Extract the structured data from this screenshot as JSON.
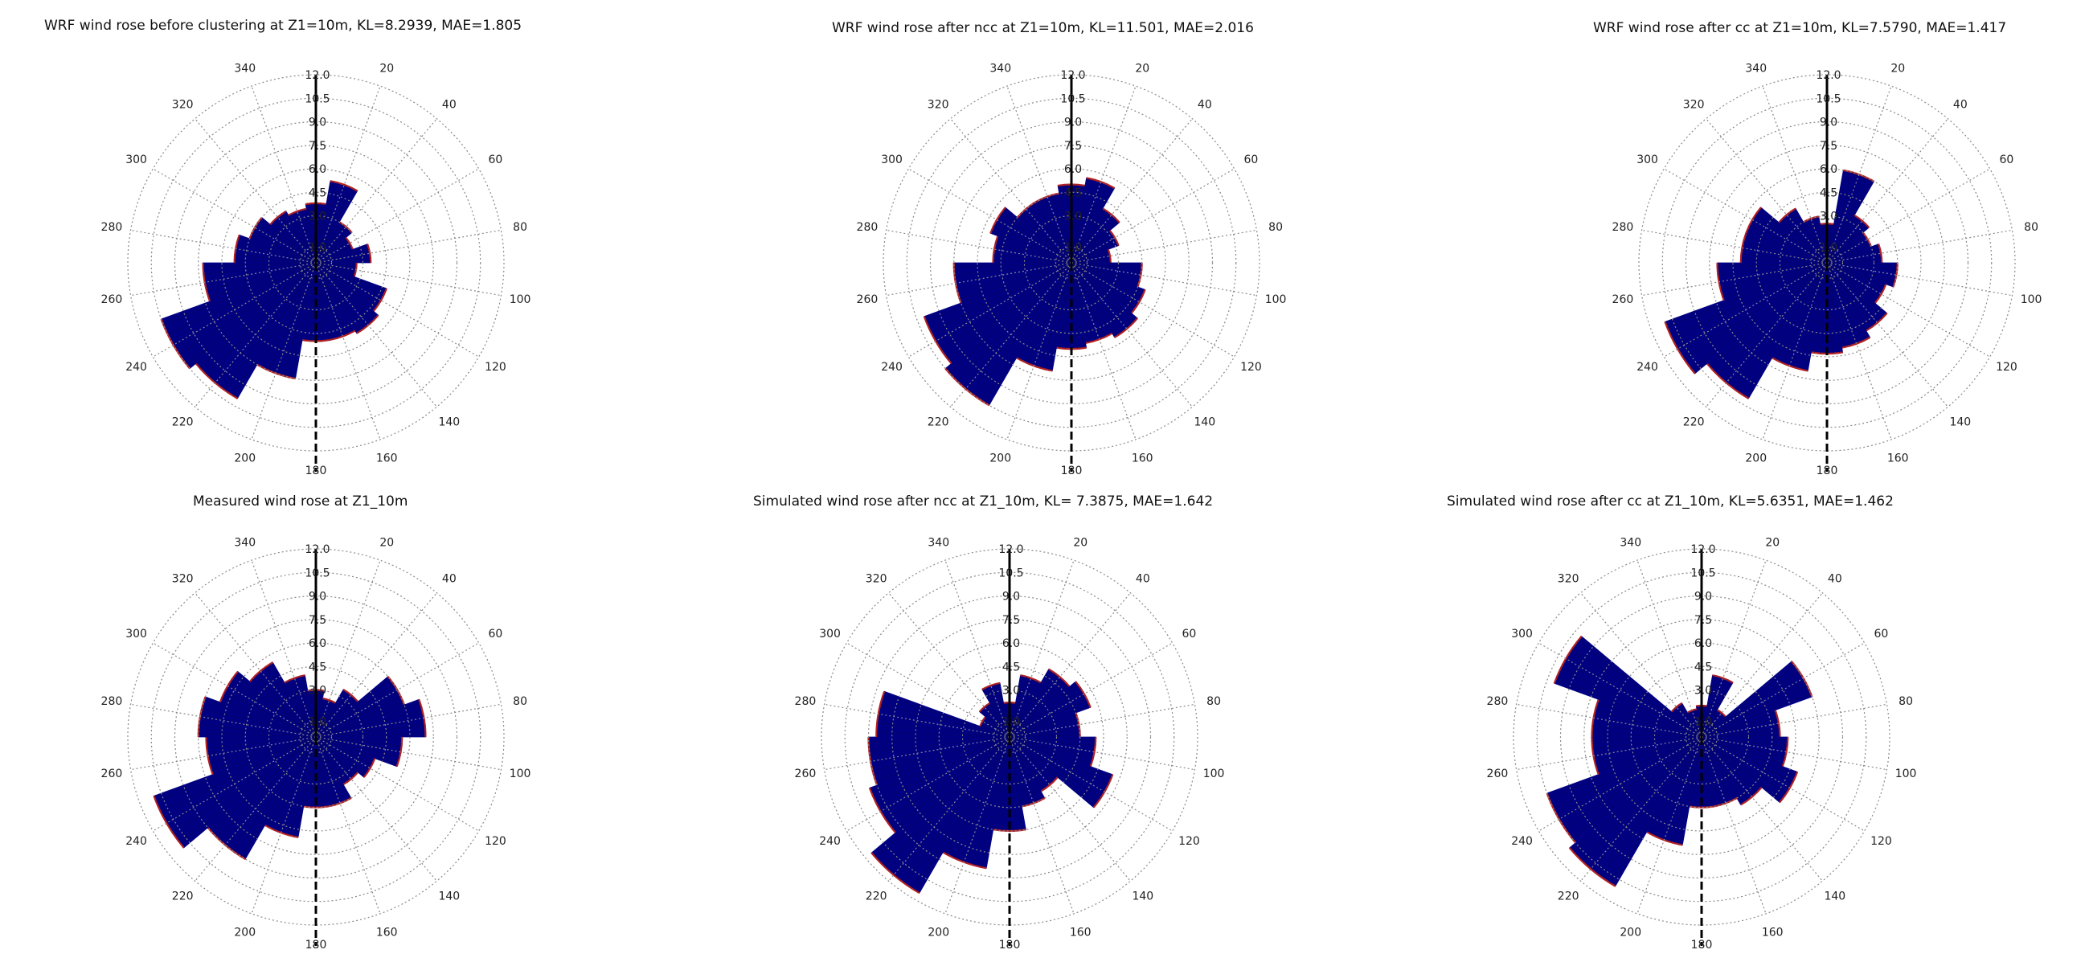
{
  "figure": {
    "panels": [
      {
        "title": "WRF wind rose before clustering at Z1=10m, KL=8.2939, MAE=1.805"
      },
      {
        "title": "WRF wind rose after ncc at Z1=10m, KL=11.501, MAE=2.016"
      },
      {
        "title": "WRF wind rose after cc at Z1=10m, KL=7.5790, MAE=1.417"
      },
      {
        "title": "Measured wind rose at Z1_10m"
      },
      {
        "title": "Simulated wind rose after ncc at Z1_10m, KL= 7.3875, MAE=1.642"
      },
      {
        "title": "Simulated wind rose after cc at Z1_10m, KL=5.6351, MAE=1.462"
      }
    ]
  },
  "colors": {
    "bar_fill": "#000080",
    "bar_edge": "#b22222",
    "grid": "#8a8a8a",
    "north_south_line": "#000000"
  },
  "chart_data": [
    {
      "type": "wind-rose",
      "title": "WRF wind rose before clustering at Z1=10m, KL=8.2939, MAE=1.805",
      "direction_ticks": [
        "20",
        "40",
        "60",
        "80",
        "100",
        "120",
        "140",
        "160",
        "180",
        "200",
        "220",
        "240",
        "260",
        "280",
        "300",
        "320",
        "340"
      ],
      "radial_ticks": [
        "1.0",
        "3.0",
        "4.5",
        "6.0",
        "7.5",
        "9.0",
        "10.5",
        "12.0"
      ],
      "rlim": [
        0,
        12
      ],
      "grid": true,
      "sector_width_deg": 20,
      "sectors_deg": [
        0,
        20,
        40,
        60,
        80,
        100,
        120,
        140,
        160,
        180,
        200,
        220,
        240,
        260,
        280,
        300,
        320,
        340
      ],
      "values": [
        3.8,
        5.3,
        3.0,
        2.5,
        3.5,
        2.6,
        4.8,
        5.2,
        5.0,
        5.0,
        7.5,
        10.0,
        10.5,
        7.2,
        5.2,
        4.5,
        3.8,
        3.5
      ]
    },
    {
      "type": "wind-rose",
      "title": "WRF wind rose after ncc at Z1=10m, KL=11.501, MAE=2.016",
      "direction_ticks": [
        "20",
        "40",
        "60",
        "80",
        "100",
        "120",
        "140",
        "160",
        "180",
        "200",
        "220",
        "240",
        "260",
        "280",
        "300",
        "320",
        "340"
      ],
      "radial_ticks": [
        "1.0",
        "3.0",
        "4.5",
        "6.0",
        "7.5",
        "9.0",
        "10.5",
        "12.0"
      ],
      "rlim": [
        0,
        12
      ],
      "grid": true,
      "sector_width_deg": 20,
      "sectors_deg": [
        0,
        20,
        40,
        60,
        80,
        100,
        120,
        140,
        160,
        180,
        200,
        220,
        240,
        260,
        280,
        300,
        320,
        340
      ],
      "values": [
        5.0,
        5.5,
        4.0,
        3.2,
        2.5,
        4.5,
        5.0,
        5.5,
        5.2,
        5.5,
        7.0,
        10.5,
        10.0,
        7.5,
        5.0,
        5.5,
        4.5,
        4.5
      ]
    },
    {
      "type": "wind-rose",
      "title": "WRF wind rose after cc at Z1=10m, KL=7.5790, MAE=1.417",
      "direction_ticks": [
        "20",
        "40",
        "60",
        "80",
        "100",
        "120",
        "140",
        "160",
        "180",
        "200",
        "220",
        "240",
        "260",
        "280",
        "300",
        "320",
        "340"
      ],
      "radial_ticks": [
        "1.0",
        "3.0",
        "4.5",
        "6.0",
        "7.5",
        "9.0",
        "10.5",
        "12.0"
      ],
      "rlim": [
        0,
        12
      ],
      "grid": true,
      "sector_width_deg": 20,
      "sectors_deg": [
        0,
        20,
        40,
        60,
        80,
        100,
        120,
        140,
        160,
        180,
        200,
        220,
        240,
        260,
        280,
        300,
        320,
        340
      ],
      "values": [
        2.5,
        6.0,
        3.5,
        3.0,
        3.5,
        4.5,
        4.0,
        5.0,
        5.5,
        5.8,
        7.0,
        10.0,
        11.0,
        7.0,
        5.5,
        5.5,
        4.0,
        3.0
      ]
    },
    {
      "type": "wind-rose",
      "title": "Measured wind rose at Z1_10m",
      "direction_ticks": [
        "20",
        "40",
        "60",
        "80",
        "100",
        "120",
        "140",
        "160",
        "180",
        "200",
        "220",
        "240",
        "260",
        "280",
        "300",
        "320",
        "340"
      ],
      "radial_ticks": [
        "1.0",
        "3.0",
        "4.5",
        "6.0",
        "7.5",
        "9.0",
        "10.5",
        "12.0"
      ],
      "rlim": [
        0,
        12
      ],
      "grid": true,
      "sector_width_deg": 20,
      "sectors_deg": [
        0,
        20,
        40,
        60,
        80,
        100,
        120,
        140,
        160,
        180,
        200,
        220,
        240,
        260,
        280,
        300,
        320,
        340
      ],
      "values": [
        3.0,
        2.5,
        3.5,
        6.0,
        7.0,
        5.5,
        4.0,
        3.5,
        4.5,
        4.5,
        6.5,
        9.0,
        11.0,
        7.0,
        7.5,
        6.5,
        5.5,
        4.0
      ]
    },
    {
      "type": "wind-rose",
      "title": "Simulated wind rose after ncc at Z1_10m, KL= 7.3875, MAE=1.642",
      "direction_ticks": [
        "20",
        "40",
        "60",
        "80",
        "100",
        "120",
        "140",
        "160",
        "180",
        "200",
        "220",
        "240",
        "260",
        "280",
        "300",
        "320",
        "340"
      ],
      "radial_ticks": [
        "1.0",
        "3.0",
        "4.5",
        "6.0",
        "7.5",
        "9.0",
        "10.5",
        "12.0"
      ],
      "rlim": [
        0,
        12
      ],
      "grid": true,
      "sector_width_deg": 20,
      "sectors_deg": [
        0,
        20,
        40,
        60,
        80,
        100,
        120,
        140,
        160,
        180,
        200,
        220,
        240,
        260,
        280,
        300,
        320,
        340
      ],
      "values": [
        2.2,
        4.0,
        5.0,
        5.5,
        4.5,
        5.5,
        7.0,
        4.0,
        4.5,
        6.0,
        8.5,
        11.5,
        9.5,
        9.0,
        8.5,
        2.0,
        2.5,
        3.5
      ]
    },
    {
      "type": "wind-rose",
      "title": "Simulated wind rose after cc at Z1_10m, KL=5.6351, MAE=1.462",
      "direction_ticks": [
        "20",
        "40",
        "60",
        "80",
        "100",
        "120",
        "140",
        "160",
        "180",
        "200",
        "220",
        "240",
        "260",
        "280",
        "300",
        "320",
        "340"
      ],
      "radial_ticks": [
        "1.0",
        "3.0",
        "4.5",
        "6.0",
        "7.5",
        "9.0",
        "10.5",
        "12.0"
      ],
      "rlim": [
        0,
        12
      ],
      "grid": true,
      "sector_width_deg": 20,
      "sectors_deg": [
        0,
        20,
        40,
        60,
        80,
        100,
        120,
        140,
        160,
        180,
        200,
        220,
        240,
        260,
        280,
        300,
        320,
        340
      ],
      "values": [
        2.0,
        4.0,
        2.0,
        7.5,
        5.0,
        5.5,
        6.5,
        5.0,
        4.5,
        4.5,
        7.0,
        11.0,
        10.5,
        7.0,
        7.0,
        10.0,
        2.5,
        1.8
      ]
    }
  ]
}
